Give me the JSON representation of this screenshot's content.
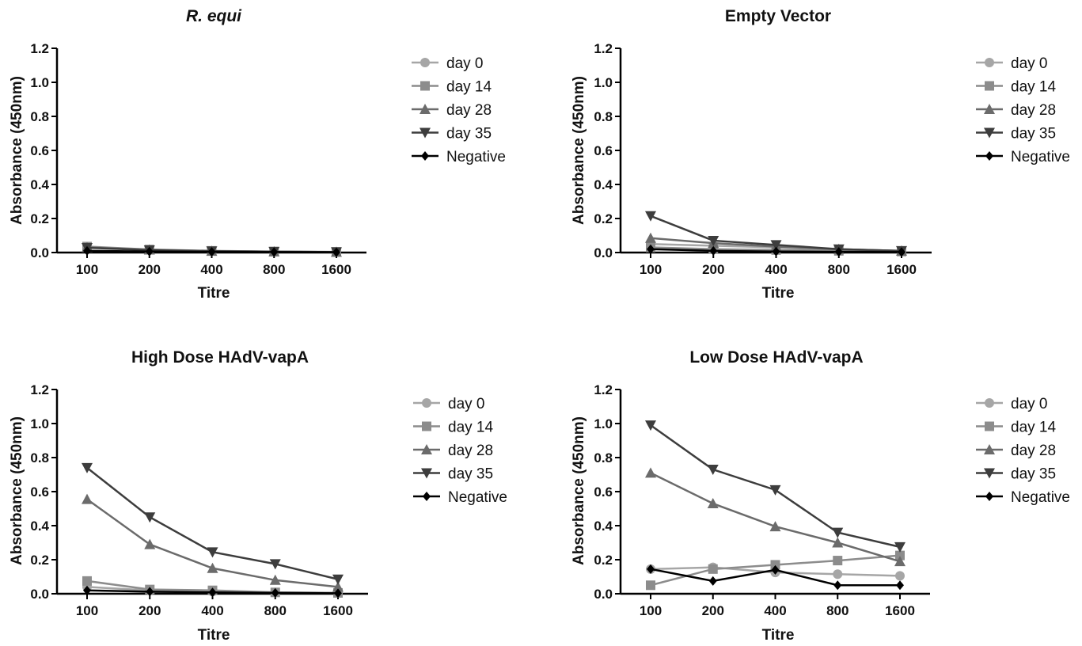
{
  "chart_data": [
    {
      "type": "line",
      "title": "R. equi",
      "title_style": "italic",
      "xlabel": "Titre",
      "ylabel": "Absorbance (450nm)",
      "categories": [
        "100",
        "200",
        "400",
        "800",
        "1600"
      ],
      "yticks": [
        "0.0",
        "0.2",
        "0.4",
        "0.6",
        "0.8",
        "1.0",
        "1.2"
      ],
      "ylim": [
        0,
        1.2
      ],
      "grid": false,
      "legend_position": "right",
      "series": [
        {
          "name": "day 0",
          "marker": "circle",
          "color": "#a6a6a6",
          "values": [
            0.03,
            0.015,
            0.008,
            0.005,
            0.003
          ]
        },
        {
          "name": "day 14",
          "marker": "square",
          "color": "#8c8c8c",
          "values": [
            0.035,
            0.018,
            0.01,
            0.006,
            0.004
          ]
        },
        {
          "name": "day 28",
          "marker": "triangle-up",
          "color": "#6b6b6b",
          "values": [
            0.03,
            0.016,
            0.009,
            0.005,
            0.003
          ]
        },
        {
          "name": "day 35",
          "marker": "triangle-down",
          "color": "#3d3d3d",
          "values": [
            0.028,
            0.014,
            0.008,
            0.005,
            0.003
          ]
        },
        {
          "name": "Negative",
          "marker": "diamond",
          "color": "#000000",
          "values": [
            0.01,
            0.006,
            0.004,
            0.003,
            0.002
          ]
        }
      ]
    },
    {
      "type": "line",
      "title": "Empty Vector",
      "title_style": "normal",
      "xlabel": "Titre",
      "ylabel": "Absorbance (450nm)",
      "categories": [
        "100",
        "200",
        "400",
        "800",
        "1600"
      ],
      "yticks": [
        "0.0",
        "0.2",
        "0.4",
        "0.6",
        "0.8",
        "1.0",
        "1.2"
      ],
      "ylim": [
        0,
        1.2
      ],
      "grid": false,
      "legend_position": "right",
      "series": [
        {
          "name": "day 0",
          "marker": "circle",
          "color": "#a6a6a6",
          "values": [
            0.05,
            0.04,
            0.03,
            0.015,
            0.01
          ]
        },
        {
          "name": "day 14",
          "marker": "square",
          "color": "#8c8c8c",
          "values": [
            0.03,
            0.02,
            0.015,
            0.01,
            0.006
          ]
        },
        {
          "name": "day 28",
          "marker": "triangle-up",
          "color": "#6b6b6b",
          "values": [
            0.085,
            0.055,
            0.035,
            0.02,
            0.01
          ]
        },
        {
          "name": "day 35",
          "marker": "triangle-down",
          "color": "#3d3d3d",
          "values": [
            0.215,
            0.07,
            0.045,
            0.02,
            0.01
          ]
        },
        {
          "name": "Negative",
          "marker": "diamond",
          "color": "#000000",
          "values": [
            0.02,
            0.01,
            0.006,
            0.004,
            0.003
          ]
        }
      ]
    },
    {
      "type": "line",
      "title": "High Dose HAdV-vapA",
      "title_style": "normal",
      "xlabel": "Titre",
      "ylabel": "Absorbance (450nm)",
      "categories": [
        "100",
        "200",
        "400",
        "800",
        "1600"
      ],
      "yticks": [
        "0.0",
        "0.2",
        "0.4",
        "0.6",
        "0.8",
        "1.0",
        "1.2"
      ],
      "ylim": [
        0,
        1.2
      ],
      "grid": false,
      "legend_position": "right",
      "series": [
        {
          "name": "day 0",
          "marker": "circle",
          "color": "#a6a6a6",
          "values": [
            0.04,
            0.02,
            0.012,
            0.008,
            0.005
          ]
        },
        {
          "name": "day 14",
          "marker": "square",
          "color": "#8c8c8c",
          "values": [
            0.075,
            0.025,
            0.02,
            0.008,
            0.005
          ]
        },
        {
          "name": "day 28",
          "marker": "triangle-up",
          "color": "#6b6b6b",
          "values": [
            0.555,
            0.29,
            0.15,
            0.08,
            0.04
          ]
        },
        {
          "name": "day 35",
          "marker": "triangle-down",
          "color": "#3d3d3d",
          "values": [
            0.74,
            0.45,
            0.245,
            0.175,
            0.085
          ]
        },
        {
          "name": "Negative",
          "marker": "diamond",
          "color": "#000000",
          "values": [
            0.02,
            0.012,
            0.008,
            0.005,
            0.003
          ]
        }
      ]
    },
    {
      "type": "line",
      "title": "Low Dose HAdV-vapA",
      "title_style": "normal",
      "xlabel": "Titre",
      "ylabel": "Absorbance (450nm)",
      "categories": [
        "100",
        "200",
        "400",
        "800",
        "1600"
      ],
      "yticks": [
        "0.0",
        "0.2",
        "0.4",
        "0.6",
        "0.8",
        "1.0",
        "1.2"
      ],
      "ylim": [
        0,
        1.2
      ],
      "grid": false,
      "legend_position": "right",
      "series": [
        {
          "name": "day 0",
          "marker": "circle",
          "color": "#a6a6a6",
          "values": [
            0.145,
            0.155,
            0.125,
            0.115,
            0.105
          ]
        },
        {
          "name": "day 14",
          "marker": "square",
          "color": "#8c8c8c",
          "values": [
            0.05,
            0.145,
            0.17,
            0.195,
            0.225
          ]
        },
        {
          "name": "day 28",
          "marker": "triangle-up",
          "color": "#6b6b6b",
          "values": [
            0.71,
            0.53,
            0.395,
            0.3,
            0.19
          ]
        },
        {
          "name": "day 35",
          "marker": "triangle-down",
          "color": "#3d3d3d",
          "values": [
            0.99,
            0.73,
            0.61,
            0.36,
            0.275
          ]
        },
        {
          "name": "Negative",
          "marker": "diamond",
          "color": "#000000",
          "values": [
            0.145,
            0.075,
            0.14,
            0.05,
            0.05
          ]
        }
      ]
    }
  ]
}
